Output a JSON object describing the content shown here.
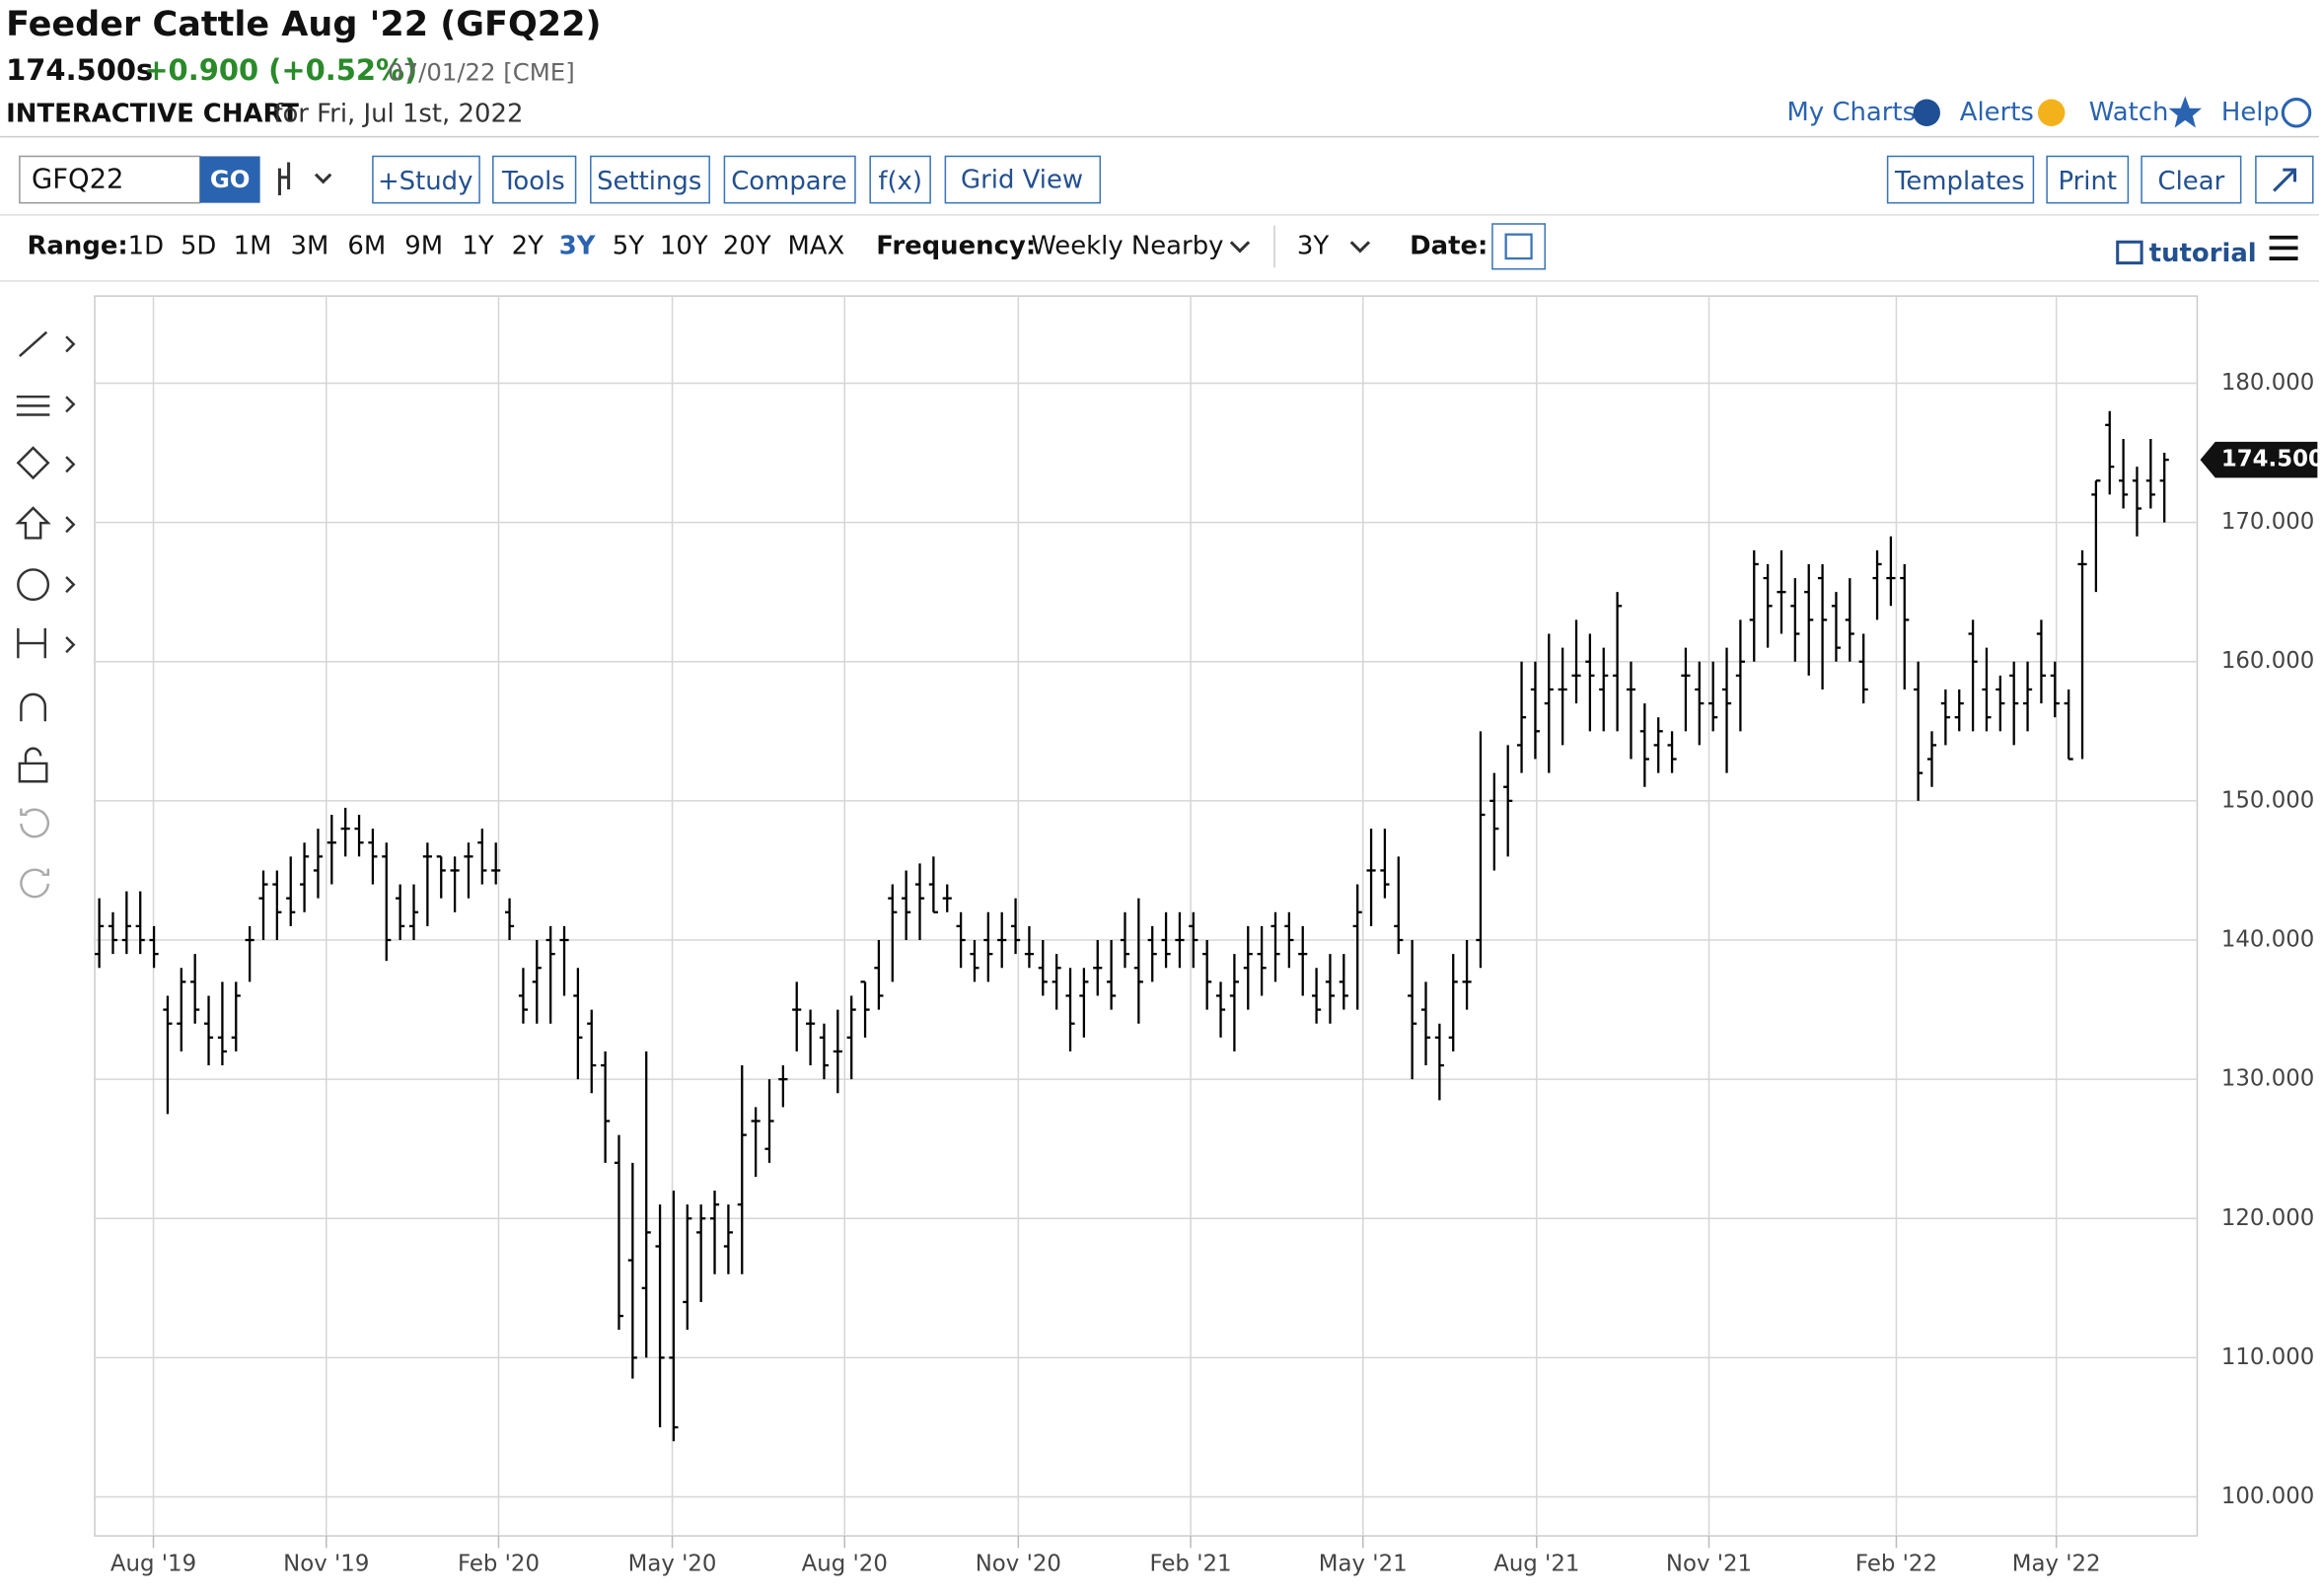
{
  "header": {
    "title": "Feeder Cattle Aug '22 (GFQ22)",
    "price": "174.500s",
    "change": "+0.900 (+0.52%)",
    "date_exchange": "07/01/22 [CME]",
    "chart_label": "INTERACTIVE CHART",
    "chart_for": "for Fri, Jul 1st, 2022"
  },
  "top_links": [
    "My Charts",
    "Alerts",
    "Watch",
    "Help"
  ],
  "toolbar": {
    "symbol": "GFQ22",
    "go": "GO",
    "buttons": [
      "+Study",
      "Tools",
      "Settings",
      "Compare",
      "f(x)",
      "Grid View"
    ],
    "right_buttons": [
      "Templates",
      "Print",
      "Clear"
    ]
  },
  "range": {
    "label": "Range:",
    "options": [
      "1D",
      "5D",
      "1M",
      "3M",
      "6M",
      "9M",
      "1Y",
      "2Y",
      "3Y",
      "5Y",
      "10Y",
      "20Y",
      "MAX"
    ],
    "active": "3Y",
    "frequency_label": "Frequency:",
    "frequency": "Weekly Nearby",
    "period": "3Y",
    "date_label": "Date:",
    "tutorial": "tutorial"
  },
  "chart_data": {
    "type": "ohlc",
    "color": "#000000",
    "grid": true,
    "ylim": [
      97.2,
      186.26
    ],
    "yticks": [
      {
        "value": 100,
        "label": "100.000"
      },
      {
        "value": 110,
        "label": "110.000"
      },
      {
        "value": 120,
        "label": "120.000"
      },
      {
        "value": 130,
        "label": "130.000"
      },
      {
        "value": 140,
        "label": "140.000"
      },
      {
        "value": 150,
        "label": "150.000"
      },
      {
        "value": 160,
        "label": "160.000"
      },
      {
        "value": 170,
        "label": "170.000"
      },
      {
        "value": 180,
        "label": "180.000"
      }
    ],
    "xlim": [
      -0.33,
      153.4
    ],
    "xticks": [
      {
        "value": 3.96,
        "label": "Aug '19"
      },
      {
        "value": 16.6,
        "label": "Nov '19"
      },
      {
        "value": 29.2,
        "label": "Feb '20"
      },
      {
        "value": 41.9,
        "label": "May '20"
      },
      {
        "value": 54.5,
        "label": "Aug '20"
      },
      {
        "value": 67.2,
        "label": "Nov '20"
      },
      {
        "value": 79.8,
        "label": "Feb '21"
      },
      {
        "value": 92.4,
        "label": "May '21"
      },
      {
        "value": 105.1,
        "label": "Aug '21"
      },
      {
        "value": 117.7,
        "label": "Nov '21"
      },
      {
        "value": 131.4,
        "label": "Feb '22"
      },
      {
        "value": 143.1,
        "label": "May '22"
      }
    ],
    "last_label": "174.500",
    "bars": [
      [
        139,
        143,
        138,
        141
      ],
      [
        141,
        142,
        139,
        140
      ],
      [
        140,
        143.5,
        139,
        141
      ],
      [
        141,
        143.5,
        139,
        140
      ],
      [
        140,
        141,
        138,
        139
      ],
      [
        135,
        136,
        127.5,
        134
      ],
      [
        134,
        138,
        132,
        137
      ],
      [
        137,
        139,
        134,
        135
      ],
      [
        134,
        136,
        131,
        133
      ],
      [
        133,
        137,
        131,
        132
      ],
      [
        133,
        137,
        132,
        136
      ],
      [
        140,
        141,
        137,
        140
      ],
      [
        143,
        145,
        140,
        144
      ],
      [
        144,
        145,
        140,
        142
      ],
      [
        143,
        146,
        141,
        142
      ],
      [
        144,
        147,
        142,
        146
      ],
      [
        145,
        148,
        143,
        146
      ],
      [
        147,
        149,
        144,
        147
      ],
      [
        148,
        149.5,
        146,
        148
      ],
      [
        148,
        149,
        146,
        147
      ],
      [
        147,
        148,
        144,
        146
      ],
      [
        146,
        147,
        138.5,
        140
      ],
      [
        143,
        144,
        140,
        141
      ],
      [
        141,
        144,
        140,
        142
      ],
      [
        146,
        147,
        141,
        146
      ],
      [
        146,
        146,
        143,
        145
      ],
      [
        145,
        146,
        142,
        145
      ],
      [
        146,
        147,
        143,
        146
      ],
      [
        147,
        148,
        144,
        145
      ],
      [
        145,
        147,
        144,
        145
      ],
      [
        142,
        143,
        140,
        141
      ],
      [
        136,
        138,
        134,
        135
      ],
      [
        137,
        140,
        134,
        138
      ],
      [
        140,
        141,
        134,
        139
      ],
      [
        140,
        141,
        136,
        140
      ],
      [
        136,
        138,
        130,
        133
      ],
      [
        134,
        135,
        129,
        131
      ],
      [
        131,
        132,
        124,
        127
      ],
      [
        124,
        126,
        112,
        113
      ],
      [
        117,
        124,
        108.5,
        110
      ],
      [
        115,
        132,
        110,
        119
      ],
      [
        118,
        121,
        105,
        110
      ],
      [
        110,
        122,
        104,
        105
      ],
      [
        114,
        121,
        112,
        120
      ],
      [
        119,
        121,
        114,
        120
      ],
      [
        120,
        122,
        116,
        121
      ],
      [
        118,
        121,
        116,
        119
      ],
      [
        121,
        131,
        116,
        126
      ],
      [
        127,
        128,
        123,
        127
      ],
      [
        125,
        130,
        124,
        127
      ],
      [
        130,
        131,
        128,
        130
      ],
      [
        135,
        137,
        132,
        135
      ],
      [
        134,
        135,
        131,
        134
      ],
      [
        133,
        134,
        130,
        131
      ],
      [
        132,
        135,
        129,
        132
      ],
      [
        133,
        136,
        130,
        135
      ],
      [
        137,
        137,
        133,
        135
      ],
      [
        138,
        140,
        135,
        136
      ],
      [
        143,
        144,
        137,
        142
      ],
      [
        143,
        145,
        140,
        142
      ],
      [
        144,
        145.5,
        140,
        143
      ],
      [
        144,
        146,
        142,
        142
      ],
      [
        143,
        144,
        142,
        143
      ],
      [
        141,
        142,
        138,
        140
      ],
      [
        139,
        140,
        137,
        138
      ],
      [
        140,
        142,
        137,
        139
      ],
      [
        140,
        142,
        138,
        140
      ],
      [
        141,
        143,
        139,
        140
      ],
      [
        139,
        141,
        138,
        139
      ],
      [
        138,
        140,
        136,
        137
      ],
      [
        137,
        139,
        135,
        138
      ],
      [
        136,
        138,
        132,
        134
      ],
      [
        136,
        138,
        133,
        137
      ],
      [
        138,
        140,
        136,
        138
      ],
      [
        137,
        140,
        135,
        136
      ],
      [
        140,
        142,
        138,
        139
      ],
      [
        138,
        143,
        134,
        137
      ],
      [
        140,
        141,
        137,
        139
      ],
      [
        140,
        142,
        138,
        139
      ],
      [
        140,
        142,
        138,
        140
      ],
      [
        141,
        142,
        138,
        140
      ],
      [
        139,
        140,
        135,
        137
      ],
      [
        136,
        137,
        133,
        135
      ],
      [
        136,
        139,
        132,
        137
      ],
      [
        138,
        141,
        135,
        139
      ],
      [
        139,
        141,
        136,
        138
      ],
      [
        141,
        142,
        137,
        139
      ],
      [
        141,
        142,
        138,
        140
      ],
      [
        139,
        141,
        136,
        139
      ],
      [
        136,
        138,
        134,
        135
      ],
      [
        137,
        139,
        134,
        136
      ],
      [
        137,
        139,
        135,
        136
      ],
      [
        141,
        144,
        135,
        142
      ],
      [
        145,
        148,
        141,
        145
      ],
      [
        145,
        148,
        143,
        144
      ],
      [
        141,
        146,
        139,
        140
      ],
      [
        136,
        140,
        130,
        134
      ],
      [
        135,
        137,
        131,
        133
      ],
      [
        133,
        134,
        128.5,
        131
      ],
      [
        133,
        139,
        132,
        137
      ],
      [
        137,
        140,
        135,
        137
      ],
      [
        140,
        155,
        138,
        149
      ],
      [
        150,
        152,
        145,
        148
      ],
      [
        151,
        154,
        146,
        150
      ],
      [
        154,
        160,
        152,
        156
      ],
      [
        158,
        160,
        153,
        155
      ],
      [
        157,
        162,
        152,
        158
      ],
      [
        158,
        161,
        154,
        158
      ],
      [
        159,
        163,
        157,
        159
      ],
      [
        160,
        162,
        155,
        159
      ],
      [
        158,
        161,
        155,
        159
      ],
      [
        159,
        165,
        155,
        164
      ],
      [
        158,
        160,
        153,
        158
      ],
      [
        155,
        157,
        151,
        153
      ],
      [
        154,
        156,
        152,
        155
      ],
      [
        154,
        155,
        152,
        153
      ],
      [
        159,
        161,
        155,
        159
      ],
      [
        158,
        160,
        154,
        157
      ],
      [
        157,
        160,
        155,
        156
      ],
      [
        158,
        161,
        152,
        157
      ],
      [
        159,
        163,
        155,
        160
      ],
      [
        163,
        168,
        160,
        167
      ],
      [
        166,
        167,
        161,
        164
      ],
      [
        165,
        168,
        162,
        165
      ],
      [
        164,
        166,
        160,
        162
      ],
      [
        165,
        167,
        159,
        163
      ],
      [
        166,
        167,
        158,
        163
      ],
      [
        164,
        165,
        160,
        161
      ],
      [
        163,
        166,
        160,
        162
      ],
      [
        160,
        162,
        157,
        158
      ],
      [
        166,
        168,
        163,
        167
      ],
      [
        166,
        169,
        164,
        166
      ],
      [
        166,
        167,
        158,
        163
      ],
      [
        158,
        160,
        150,
        152
      ],
      [
        153,
        155,
        151,
        154
      ],
      [
        157,
        158,
        154,
        156
      ],
      [
        156,
        158,
        155,
        157
      ],
      [
        162,
        163,
        155,
        160
      ],
      [
        158,
        161,
        155,
        156
      ],
      [
        158,
        159,
        155,
        157
      ],
      [
        159,
        160,
        154,
        157
      ],
      [
        157,
        160,
        155,
        158
      ],
      [
        162,
        163,
        157,
        159
      ],
      [
        159,
        160,
        156,
        157
      ],
      [
        157,
        158,
        153,
        153
      ],
      [
        167,
        168,
        153,
        167
      ],
      [
        172,
        173,
        165,
        173
      ],
      [
        177,
        178,
        172,
        174
      ],
      [
        173,
        176,
        171,
        172
      ],
      [
        173,
        174,
        169,
        171
      ],
      [
        173,
        176,
        171,
        172
      ],
      [
        173,
        175,
        170,
        174.5
      ]
    ]
  }
}
